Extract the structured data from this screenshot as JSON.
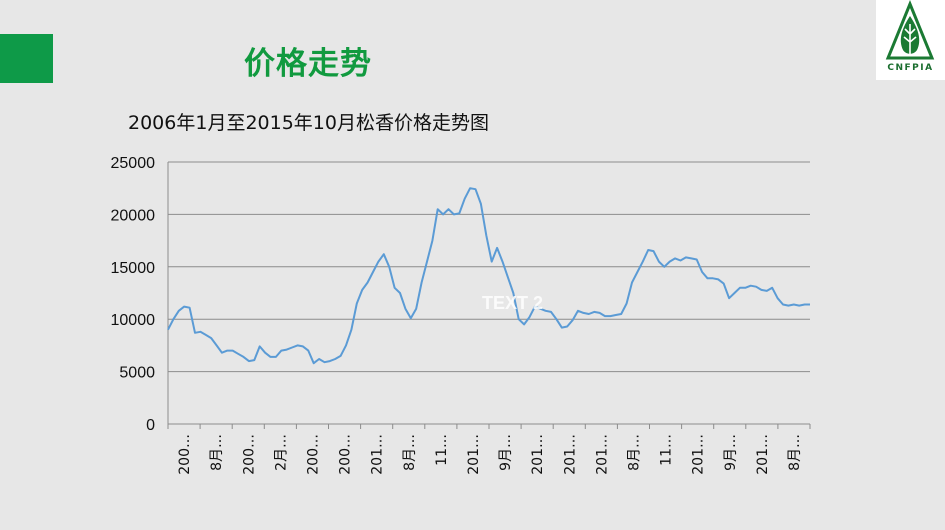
{
  "slide": {
    "title": "价格走势",
    "logo_text": "CNFPIA",
    "watermark": "TEXT 2"
  },
  "colors": {
    "accent": "#0e9a48",
    "title": "#119a3f",
    "line": "#5b9bd5",
    "grid": "#8c8c8c",
    "background": "#e7e7e7"
  },
  "chart_data": {
    "type": "line",
    "title": "2006年1月至2015年10月松香价格走势图",
    "xlabel": "",
    "ylabel": "",
    "ylim": [
      0,
      25000
    ],
    "yticks": [
      0,
      5000,
      10000,
      15000,
      20000,
      25000
    ],
    "grid": true,
    "legend": "none",
    "x_tick_labels": [
      "200…",
      "8月…",
      "200…",
      "2月…",
      "200…",
      "200…",
      "201…",
      "8月…",
      "11…",
      "201…",
      "9月…",
      "201…",
      "201…",
      "201…",
      "8月…",
      "11…",
      "201…",
      "9月…",
      "201…",
      "8月…"
    ],
    "series": [
      {
        "values": [
          9000,
          10000,
          10800,
          11200,
          11100,
          8700,
          8800,
          8500,
          8200,
          7500,
          6800,
          7000,
          7000,
          6700,
          6400,
          6000,
          6100,
          7400,
          6800,
          6400,
          6400,
          7000,
          7100,
          7300,
          7500,
          7400,
          7000,
          5800,
          6200,
          5900,
          6000,
          6200,
          6500,
          7500,
          9000,
          11500,
          12800,
          13500,
          14500,
          15500,
          16200,
          15000,
          13000,
          12500,
          11000,
          10100,
          11000,
          13500,
          15500,
          17500,
          20500,
          20000,
          20500,
          20000,
          20100,
          21500,
          22500,
          22400,
          21000,
          18000,
          15500,
          16800,
          15500,
          14000,
          12500,
          10000,
          9500,
          10200,
          11200,
          11000,
          10800,
          10700,
          10000,
          9200,
          9300,
          9900,
          10800,
          10600,
          10500,
          10700,
          10600,
          10300,
          10300,
          10400,
          10500,
          11500,
          13500,
          14500,
          15500,
          16600,
          16500,
          15500,
          15000,
          15500,
          15800,
          15600,
          15900,
          15800,
          15700,
          14500,
          13900,
          13900,
          13800,
          13400,
          12000,
          12500,
          13000,
          13000,
          13200,
          13100,
          12800,
          12700,
          13000,
          12000,
          11400,
          11300,
          11400,
          11300,
          11400,
          11400
        ]
      }
    ]
  }
}
